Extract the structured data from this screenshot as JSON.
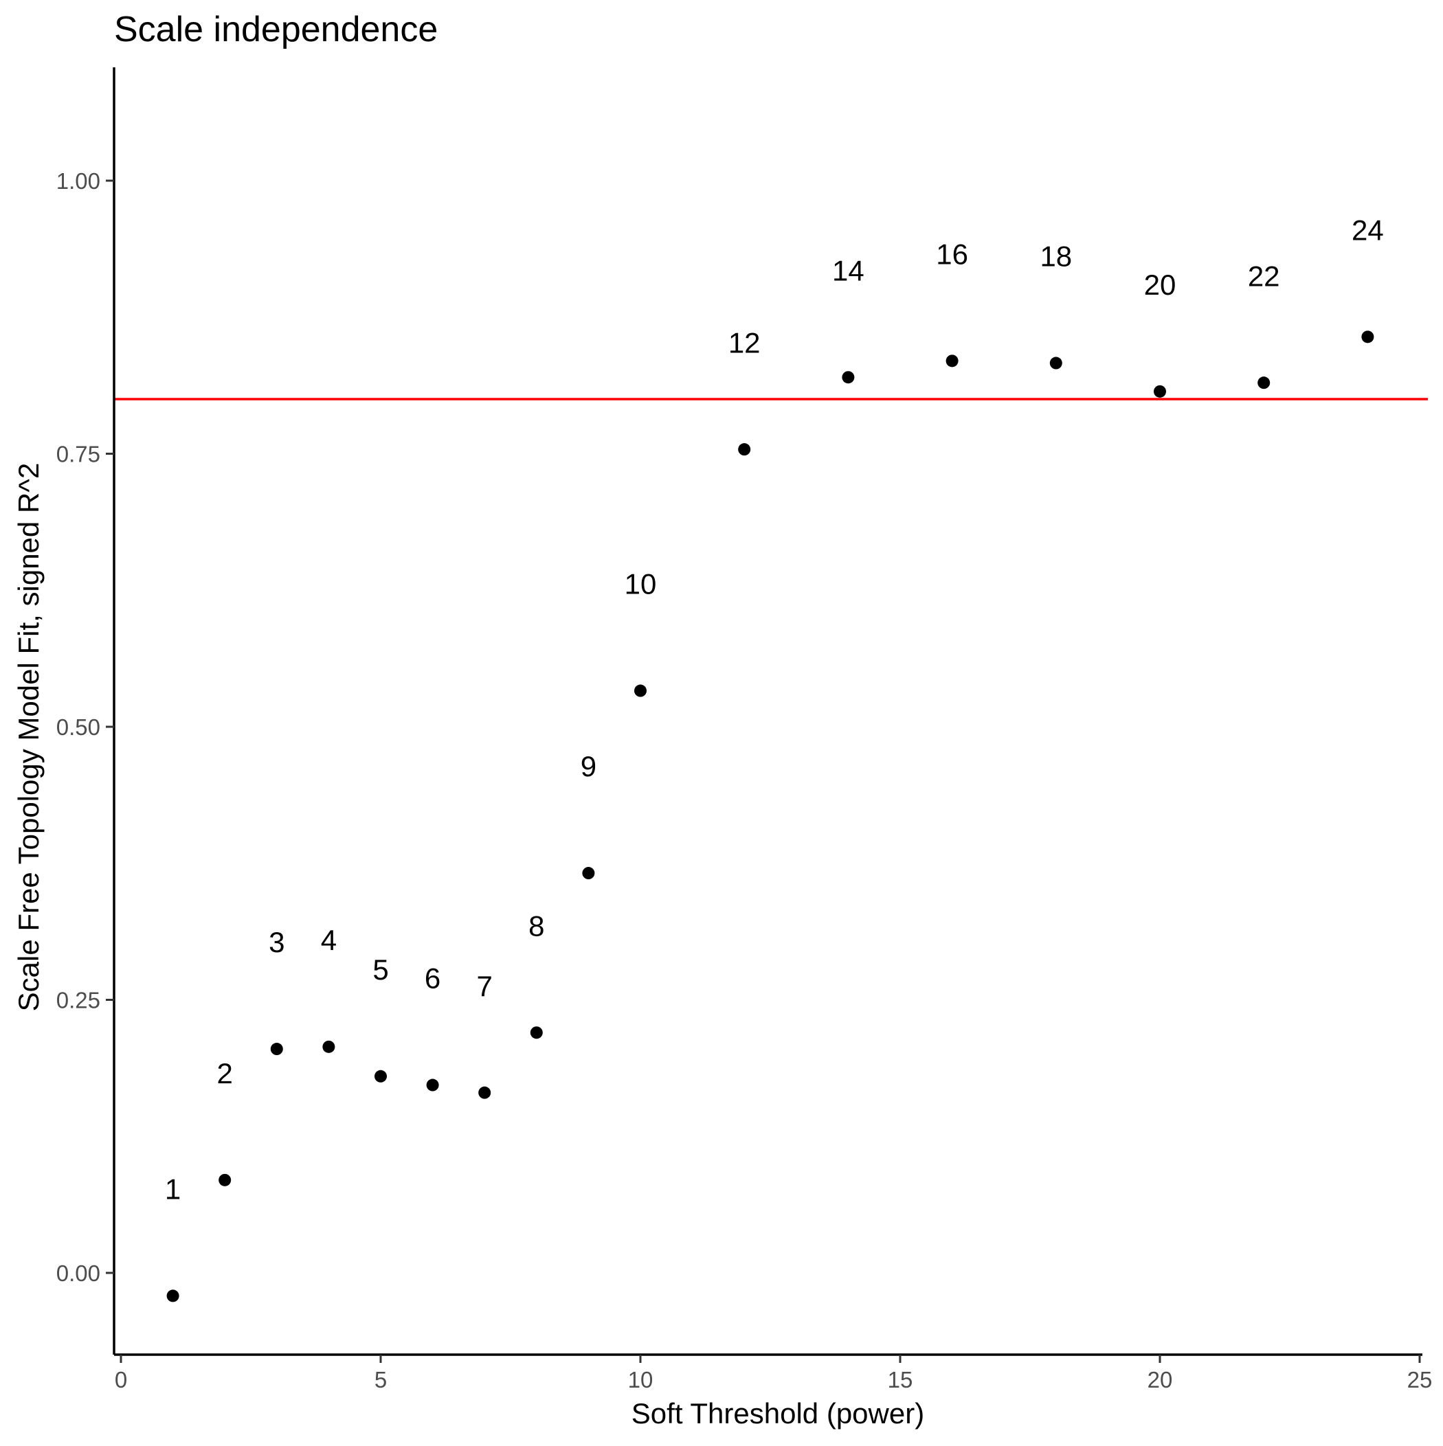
{
  "chart_data": {
    "type": "scatter",
    "title": "Scale independence",
    "xlabel": "Soft Threshold (power)",
    "ylabel": "Scale Free Topology Model Fit, signed R^2",
    "xlim": [
      0,
      25
    ],
    "ylim": [
      -0.07,
      1.1
    ],
    "x_ticks": [
      0,
      5,
      10,
      15,
      20,
      25
    ],
    "x_tick_labels": [
      "0",
      "5",
      "10",
      "15",
      "20",
      "25"
    ],
    "y_ticks": [
      0.0,
      0.25,
      0.5,
      0.75,
      1.0
    ],
    "y_tick_labels": [
      "0.00",
      "0.25",
      "0.50",
      "0.75",
      "1.00"
    ],
    "grid": false,
    "reference_line": {
      "y": 0.8,
      "color": "#ff0000"
    },
    "point_color": "#000000",
    "points": [
      {
        "x": 1,
        "y": -0.021,
        "label": "1",
        "label_y": 0.077
      },
      {
        "x": 2,
        "y": 0.085,
        "label": "2",
        "label_y": 0.183
      },
      {
        "x": 3,
        "y": 0.205,
        "label": "3",
        "label_y": 0.303
      },
      {
        "x": 4,
        "y": 0.207,
        "label": "4",
        "label_y": 0.305
      },
      {
        "x": 5,
        "y": 0.18,
        "label": "5",
        "label_y": 0.278
      },
      {
        "x": 6,
        "y": 0.172,
        "label": "6",
        "label_y": 0.27
      },
      {
        "x": 7,
        "y": 0.165,
        "label": "7",
        "label_y": 0.263
      },
      {
        "x": 8,
        "y": 0.22,
        "label": "8",
        "label_y": 0.318
      },
      {
        "x": 9,
        "y": 0.366,
        "label": "9",
        "label_y": 0.464
      },
      {
        "x": 10,
        "y": 0.533,
        "label": "10",
        "label_y": 0.631
      },
      {
        "x": 12,
        "y": 0.754,
        "label": "12",
        "label_y": 0.852
      },
      {
        "x": 14,
        "y": 0.82,
        "label": "14",
        "label_y": 0.918
      },
      {
        "x": 16,
        "y": 0.835,
        "label": "16",
        "label_y": 0.933
      },
      {
        "x": 18,
        "y": 0.833,
        "label": "18",
        "label_y": 0.931
      },
      {
        "x": 20,
        "y": 0.807,
        "label": "20",
        "label_y": 0.905
      },
      {
        "x": 22,
        "y": 0.815,
        "label": "22",
        "label_y": 0.913
      },
      {
        "x": 24,
        "y": 0.857,
        "label": "24",
        "label_y": 0.955
      }
    ]
  }
}
